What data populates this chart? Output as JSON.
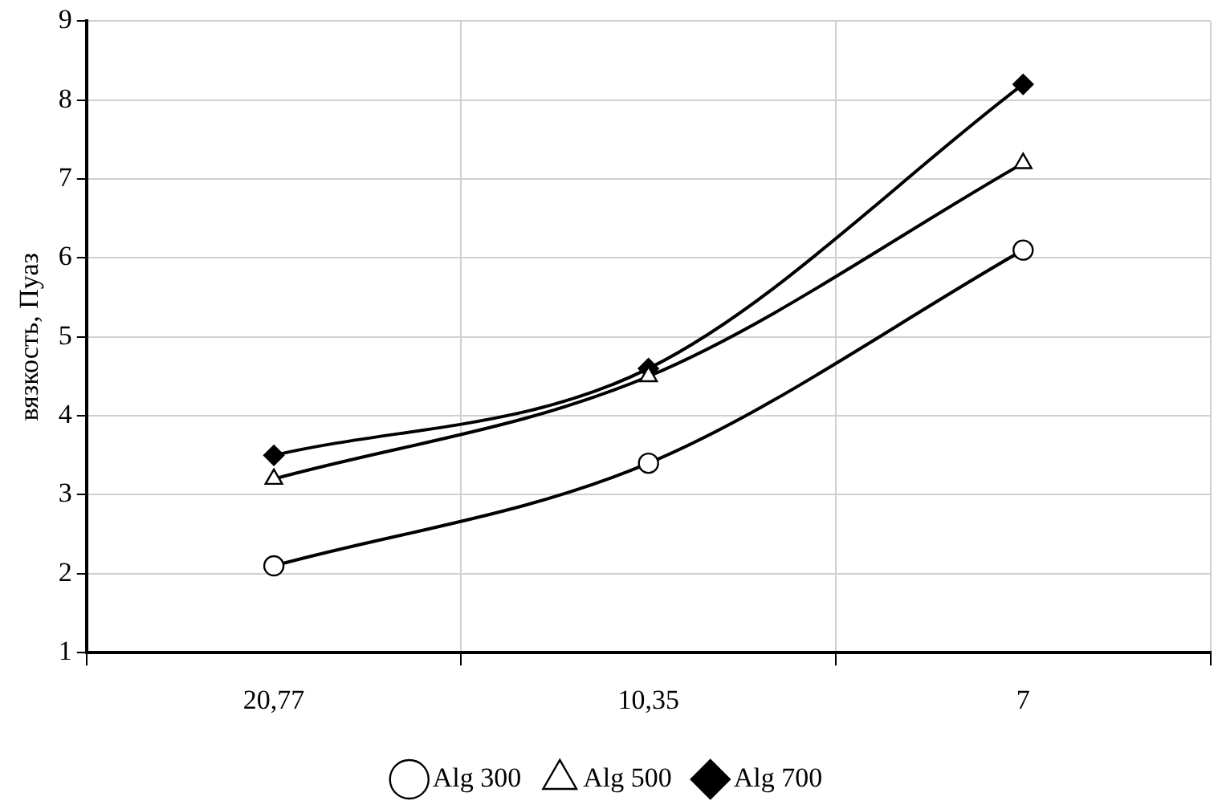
{
  "chart_data": {
    "type": "line",
    "ylabel": "вязкость, Пуаз",
    "categories": [
      "20,77",
      "10,35",
      "7"
    ],
    "series": [
      {
        "name": "Alg 300",
        "color": "#000000",
        "marker": "circle",
        "values": [
          2.1,
          3.4,
          6.1
        ]
      },
      {
        "name": "Alg 500",
        "color": "#000000",
        "marker": "triangle",
        "values": [
          3.2,
          4.5,
          7.2
        ]
      },
      {
        "name": "Alg 700",
        "color": "#000000",
        "marker": "diamond",
        "values": [
          3.5,
          4.6,
          8.2
        ]
      }
    ],
    "ylim": [
      1,
      9
    ],
    "yticks": [
      1,
      2,
      3,
      4,
      5,
      6,
      7,
      8,
      9
    ],
    "grid": true,
    "legend": "bottom"
  }
}
